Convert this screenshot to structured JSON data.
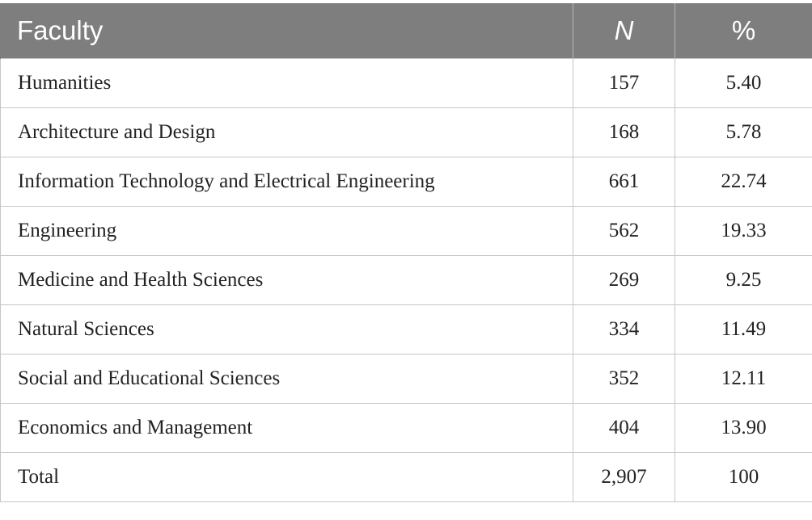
{
  "table": {
    "headers": {
      "faculty": "Faculty",
      "n": "N",
      "percent": "%"
    },
    "rows": [
      {
        "faculty": "Humanities",
        "n": "157",
        "percent": "5.40"
      },
      {
        "faculty": "Architecture and Design",
        "n": "168",
        "percent": "5.78"
      },
      {
        "faculty": "Information Technology and Electrical Engineering",
        "n": "661",
        "percent": "22.74"
      },
      {
        "faculty": "Engineering",
        "n": "562",
        "percent": "19.33"
      },
      {
        "faculty": "Medicine and Health Sciences",
        "n": "269",
        "percent": "9.25"
      },
      {
        "faculty": "Natural Sciences",
        "n": "334",
        "percent": "11.49"
      },
      {
        "faculty": "Social and Educational Sciences",
        "n": "352",
        "percent": "12.11"
      },
      {
        "faculty": "Economics and Management",
        "n": "404",
        "percent": "13.90"
      },
      {
        "faculty": "Total",
        "n": "2,907",
        "percent": "100"
      }
    ]
  },
  "colors": {
    "header_background": "#7d7e7d",
    "header_text": "#ffffff",
    "cell_border": "#c6c6c6",
    "body_text": "#222222"
  }
}
